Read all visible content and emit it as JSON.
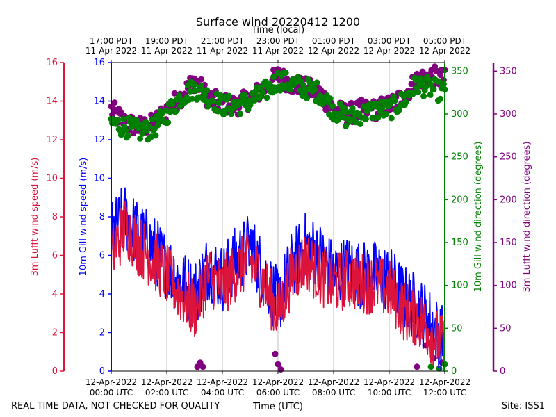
{
  "chart_data": {
    "type": "line",
    "title": "Surface wind 20220412 1200",
    "top_axis_label": "Time (local)",
    "bottom_axis_label": "Time (UTC)",
    "footer_left": "REAL TIME DATA, NOT CHECKED FOR QUALITY",
    "footer_right": "Site: ISS1",
    "x_range_hours_utc": [
      0,
      12
    ],
    "top_ticks": [
      {
        "h": 0,
        "line1": "17:00 PDT",
        "line2": "11-Apr-2022"
      },
      {
        "h": 2,
        "line1": "19:00 PDT",
        "line2": "11-Apr-2022"
      },
      {
        "h": 4,
        "line1": "21:00 PDT",
        "line2": "11-Apr-2022"
      },
      {
        "h": 6,
        "line1": "23:00 PDT",
        "line2": "11-Apr-2022"
      },
      {
        "h": 8,
        "line1": "01:00 PDT",
        "line2": "12-Apr-2022"
      },
      {
        "h": 10,
        "line1": "03:00 PDT",
        "line2": "12-Apr-2022"
      },
      {
        "h": 12,
        "line1": "05:00 PDT",
        "line2": "12-Apr-2022"
      }
    ],
    "bottom_ticks": [
      {
        "h": 0,
        "line1": "12-Apr-2022",
        "line2": "00:00 UTC"
      },
      {
        "h": 2,
        "line1": "12-Apr-2022",
        "line2": "02:00 UTC"
      },
      {
        "h": 4,
        "line1": "12-Apr-2022",
        "line2": "04:00 UTC"
      },
      {
        "h": 6,
        "line1": "12-Apr-2022",
        "line2": "06:00 UTC"
      },
      {
        "h": 8,
        "line1": "12-Apr-2022",
        "line2": "08:00 UTC"
      },
      {
        "h": 10,
        "line1": "12-Apr-2022",
        "line2": "10:00 UTC"
      },
      {
        "h": 12,
        "line1": "12-Apr-2022",
        "line2": "12:00 UTC"
      }
    ],
    "axes": {
      "lufft_speed": {
        "label": "3m Lufft wind speed (m/s)",
        "range": [
          0,
          16
        ],
        "ticks": [
          0,
          2,
          4,
          6,
          8,
          10,
          12,
          14,
          16
        ],
        "color": "#dc143c"
      },
      "gill_speed": {
        "label": "10m Gill wind speed (m/s)",
        "range": [
          0,
          16
        ],
        "ticks": [
          0,
          2,
          4,
          6,
          8,
          10,
          12,
          14,
          16
        ],
        "color": "#0000ff"
      },
      "gill_dir": {
        "label": "10m Gill wind direction (degrees)",
        "range": [
          0,
          360
        ],
        "ticks": [
          0,
          50,
          100,
          150,
          200,
          250,
          300,
          350
        ],
        "color": "#008000"
      },
      "lufft_dir": {
        "label": "3m Lufft wind direction (degrees)",
        "range": [
          0,
          360
        ],
        "ticks": [
          0,
          50,
          100,
          150,
          200,
          250,
          300,
          350
        ],
        "color": "#800080"
      }
    },
    "series": [
      {
        "name": "10m Gill wind speed",
        "kind": "line",
        "axis": "gill_speed",
        "color": "#0000ff",
        "x": [
          0,
          0.5,
          1,
          1.5,
          2,
          2.5,
          3,
          3.5,
          4,
          4.5,
          5,
          5.5,
          6,
          6.5,
          7,
          7.5,
          8,
          8.5,
          9,
          9.5,
          10,
          10.5,
          11,
          11.5,
          12
        ],
        "values": [
          7.0,
          8.0,
          7.0,
          6.4,
          5.5,
          4.6,
          4.0,
          5.5,
          4.8,
          5.8,
          6.5,
          5.0,
          3.5,
          5.5,
          6.5,
          6.0,
          5.0,
          5.3,
          5.0,
          5.0,
          4.8,
          3.8,
          3.3,
          2.5,
          1.5
        ]
      },
      {
        "name": "3m Lufft wind speed",
        "kind": "line",
        "axis": "lufft_speed",
        "color": "#dc143c",
        "x": [
          0,
          0.5,
          1,
          1.5,
          2,
          2.5,
          3,
          3.5,
          4,
          4.5,
          5,
          5.5,
          6,
          6.5,
          7,
          7.5,
          8,
          8.5,
          9,
          9.5,
          10,
          10.5,
          11,
          11.5,
          12
        ],
        "values": [
          6.0,
          7.5,
          6.5,
          5.8,
          5.0,
          4.0,
          3.2,
          5.0,
          4.3,
          5.2,
          5.8,
          4.5,
          3.0,
          5.0,
          5.8,
          5.0,
          4.5,
          4.8,
          4.6,
          4.5,
          4.2,
          3.2,
          2.8,
          2.0,
          1.2
        ]
      },
      {
        "name": "10m Gill wind direction",
        "kind": "scatter",
        "axis": "gill_dir",
        "color": "#008000",
        "x": [
          0,
          0.5,
          1,
          1.5,
          2,
          2.5,
          3,
          3.5,
          4,
          4.5,
          5,
          5.5,
          6,
          6.5,
          7,
          7.5,
          8,
          8.5,
          9,
          9.5,
          10,
          10.5,
          11,
          11.5,
          12
        ],
        "values": [
          290,
          285,
          280,
          282,
          300,
          320,
          330,
          320,
          310,
          310,
          315,
          325,
          340,
          335,
          330,
          325,
          305,
          295,
          300,
          305,
          305,
          315,
          335,
          330,
          325
        ]
      },
      {
        "name": "3m Lufft wind direction",
        "kind": "scatter",
        "axis": "lufft_dir",
        "color": "#800080",
        "x": [
          0,
          0.5,
          1,
          1.5,
          2,
          2.5,
          3,
          3.5,
          4,
          4.5,
          5,
          5.5,
          6,
          6.5,
          7,
          7.5,
          8,
          8.5,
          9,
          9.5,
          10,
          10.5,
          11,
          11.5,
          12
        ],
        "values": [
          305,
          290,
          285,
          288,
          305,
          320,
          340,
          318,
          312,
          310,
          318,
          330,
          345,
          335,
          330,
          325,
          305,
          300,
          305,
          305,
          310,
          320,
          340,
          345,
          340
        ]
      },
      {
        "name": "3m Lufft wind direction (low cluster)",
        "kind": "scatter",
        "axis": "lufft_dir",
        "color": "#800080",
        "x": [
          3.1,
          3.2,
          3.3,
          5.9,
          6.0,
          6.1,
          11.0,
          11.3,
          11.6,
          11.9
        ],
        "values": [
          5,
          10,
          5,
          20,
          8,
          2,
          5,
          30,
          15,
          10
        ]
      },
      {
        "name": "10m Gill wind direction (low cluster)",
        "kind": "scatter",
        "axis": "gill_dir",
        "color": "#008000",
        "x": [
          11.5,
          11.8,
          12.0
        ],
        "values": [
          5,
          3,
          8
        ]
      }
    ]
  }
}
